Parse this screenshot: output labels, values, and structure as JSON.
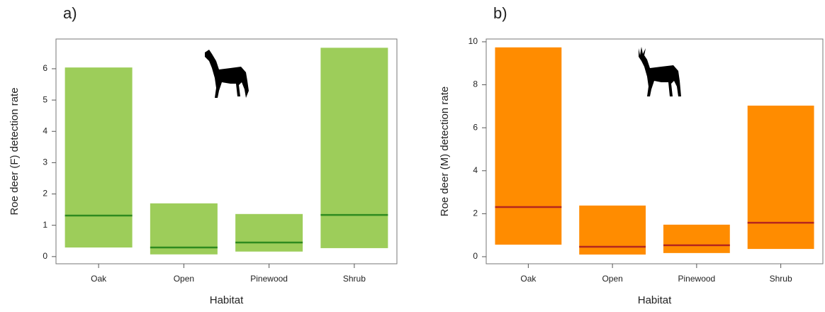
{
  "chart_data": [
    {
      "type": "floating-bar",
      "panel_label": "a)",
      "y_label": "Roe deer (F) detection rate",
      "x_label": "Habitat",
      "categories": [
        "Oak",
        "Open",
        "Pinewood",
        "Shrub"
      ],
      "lows": [
        0.29,
        0.07,
        0.16,
        0.27
      ],
      "highs": [
        6.04,
        1.7,
        1.36,
        6.67
      ],
      "medians": [
        1.31,
        0.29,
        0.45,
        1.33
      ],
      "color": "#9dcd5a",
      "median_color": "#2e8b1f",
      "ylim": [
        -0.23,
        6.95
      ],
      "yticks": [
        0,
        1,
        2,
        3,
        4,
        5,
        6
      ]
    },
    {
      "type": "floating-bar",
      "panel_label": "b)",
      "y_label": "Roe deer (M) detection rate",
      "x_label": "Habitat",
      "categories": [
        "Oak",
        "Open",
        "Pinewood",
        "Shrub"
      ],
      "lows": [
        0.56,
        0.1,
        0.17,
        0.36
      ],
      "highs": [
        9.74,
        2.38,
        1.49,
        7.03
      ],
      "medians": [
        2.31,
        0.46,
        0.53,
        1.58
      ],
      "color": "#ff8c00",
      "median_color": "#b5261e",
      "ylim": [
        -0.33,
        10.13
      ],
      "yticks": [
        0,
        2,
        4,
        6,
        8,
        10
      ]
    }
  ]
}
